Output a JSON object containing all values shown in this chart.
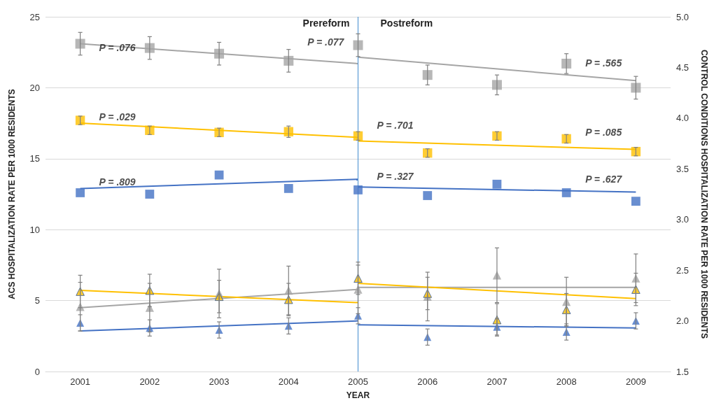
{
  "chart_data": {
    "type": "scatter",
    "xlabel": "YEAR",
    "ylabel": "ACS HOSPITALIZATION RATE PER 1000 RESIDENTS",
    "y2label": "CONTROL CONDITIONS HOSPITALIZATION RATE PER 1000 RESIDENTS",
    "categories": [
      "2001",
      "2002",
      "2003",
      "2004",
      "2005",
      "2006",
      "2007",
      "2008",
      "2009"
    ],
    "ylim": [
      0,
      25
    ],
    "yticks": [
      0,
      5,
      10,
      15,
      20,
      25
    ],
    "y2lim": [
      1.5,
      5
    ],
    "y2ticks": [
      1.5,
      {
        "value": 2,
        "label": "2.0"
      },
      2.5,
      {
        "value": 3,
        "label": "3.0"
      },
      3.5,
      {
        "value": 4,
        "label": "4.0"
      },
      4.5,
      {
        "value": 5,
        "label": "5.0"
      }
    ],
    "grid": "y",
    "series": [
      {
        "marker": "square",
        "color": "#a5a5a5",
        "values": [
          23.1,
          22.8,
          22.4,
          21.9,
          23.0,
          20.9,
          20.2,
          21.7,
          20.0
        ],
        "errors": [
          0.8,
          0.8,
          0.8,
          0.8,
          0.8,
          0.7,
          0.7,
          0.7,
          0.8
        ]
      },
      {
        "marker": "square",
        "color": "#ffc000",
        "values": [
          17.7,
          17.0,
          16.85,
          16.9,
          16.6,
          15.4,
          16.6,
          16.4,
          15.5
        ],
        "errors": [
          0.3,
          0.3,
          0.3,
          0.4,
          0.3,
          0.3,
          0.3,
          0.3,
          0.3
        ]
      },
      {
        "marker": "square",
        "color": "#4472c4",
        "values": [
          12.6,
          12.5,
          13.85,
          12.9,
          12.8,
          12.4,
          13.2,
          12.6,
          12.0
        ]
      },
      {
        "marker": "triangle",
        "axis": "y2",
        "color": "#a5a5a5",
        "values": [
          2.14,
          2.13,
          2.27,
          2.3,
          2.31,
          2.24,
          2.45,
          2.19,
          2.42
        ],
        "errors": [
          0.24,
          0.24,
          0.24,
          0.24,
          0.24,
          0.24,
          0.27,
          0.24,
          0.24
        ]
      },
      {
        "marker": "triangle",
        "axis": "y2",
        "color": "#ffc000",
        "values": [
          2.29,
          2.3,
          2.24,
          2.21,
          2.42,
          2.27,
          2.01,
          2.11,
          2.31
        ],
        "errors": [
          0.16,
          0.16,
          0.16,
          0.16,
          0.16,
          0.16,
          0.16,
          0.16,
          0.16
        ]
      },
      {
        "marker": "triangle",
        "axis": "y2",
        "color": "#4472c4",
        "values": [
          1.98,
          1.93,
          1.91,
          1.95,
          2.05,
          1.84,
          1.94,
          1.89,
          2.0
        ],
        "errors": [
          0.08,
          0.08,
          0.08,
          0.08,
          0.08,
          0.08,
          0.08,
          0.08,
          0.08
        ]
      },
      {
        "type": "line",
        "marker": "none",
        "color": "#a5a5a5",
        "values": [
          23.1,
          null,
          null,
          null,
          21.7,
          null,
          null,
          null,
          null
        ]
      },
      {
        "type": "line",
        "marker": "none",
        "color": "#a5a5a5",
        "values": [
          null,
          null,
          null,
          null,
          22.15,
          null,
          null,
          null,
          20.5
        ]
      },
      {
        "type": "line",
        "marker": "none",
        "color": "#ffc000",
        "values": [
          17.5,
          null,
          null,
          null,
          16.5,
          null,
          null,
          null,
          null
        ]
      },
      {
        "type": "line",
        "marker": "none",
        "color": "#ffc000",
        "values": [
          null,
          null,
          null,
          null,
          16.25,
          null,
          null,
          null,
          15.65
        ]
      },
      {
        "type": "line",
        "marker": "none",
        "color": "#4472c4",
        "values": [
          12.9,
          null,
          null,
          null,
          13.55,
          null,
          null,
          null,
          null
        ]
      },
      {
        "type": "line",
        "marker": "none",
        "color": "#4472c4",
        "values": [
          null,
          null,
          null,
          null,
          13.0,
          null,
          null,
          null,
          12.65
        ]
      },
      {
        "type": "line",
        "marker": "none",
        "axis": "y2",
        "color": "#a5a5a5",
        "values": [
          2.13,
          null,
          null,
          null,
          2.31,
          null,
          null,
          null,
          null
        ]
      },
      {
        "type": "line",
        "marker": "none",
        "axis": "y2",
        "color": "#a5a5a5",
        "values": [
          null,
          null,
          null,
          null,
          2.33,
          null,
          null,
          null,
          2.33
        ]
      },
      {
        "type": "line",
        "marker": "none",
        "axis": "y2",
        "color": "#ffc000",
        "values": [
          2.3,
          null,
          null,
          null,
          2.18,
          null,
          null,
          null,
          null
        ]
      },
      {
        "type": "line",
        "marker": "none",
        "axis": "y2",
        "color": "#ffc000",
        "values": [
          null,
          null,
          null,
          null,
          2.37,
          null,
          null,
          null,
          2.22
        ]
      },
      {
        "type": "line",
        "marker": "none",
        "axis": "y2",
        "color": "#4472c4",
        "values": [
          1.9,
          null,
          null,
          null,
          2.0,
          null,
          null,
          null,
          null
        ]
      },
      {
        "type": "line",
        "marker": "none",
        "axis": "y2",
        "color": "#4472c4",
        "values": [
          null,
          null,
          null,
          null,
          1.96,
          null,
          null,
          null,
          1.93
        ]
      }
    ],
    "ref_lines": [
      {
        "axis": "x",
        "value": "2005",
        "color": "#5b9bd5"
      }
    ],
    "annotations": [
      "Prereform",
      "Postreform",
      {
        "text": "P = .076",
        "x": "2001",
        "y": 22.4
      },
      {
        "text": "P = .029",
        "x": "2001",
        "y": 17.5
      },
      {
        "text": "P = .809",
        "x": "2001",
        "y": 12.9
      },
      {
        "text": "P = .077",
        "x": "2004",
        "y": 22.8
      },
      {
        "text": "P = .701",
        "x": "2005",
        "y": 16.9
      },
      {
        "text": "P = .327",
        "x": "2005",
        "y": 13.3
      },
      {
        "text": "P = .565",
        "x": "2008",
        "y": 21.3
      },
      {
        "text": "P = .085",
        "x": "2008",
        "y": 16.4
      },
      {
        "text": "P = .627",
        "x": "2008",
        "y": 13.1
      }
    ]
  }
}
